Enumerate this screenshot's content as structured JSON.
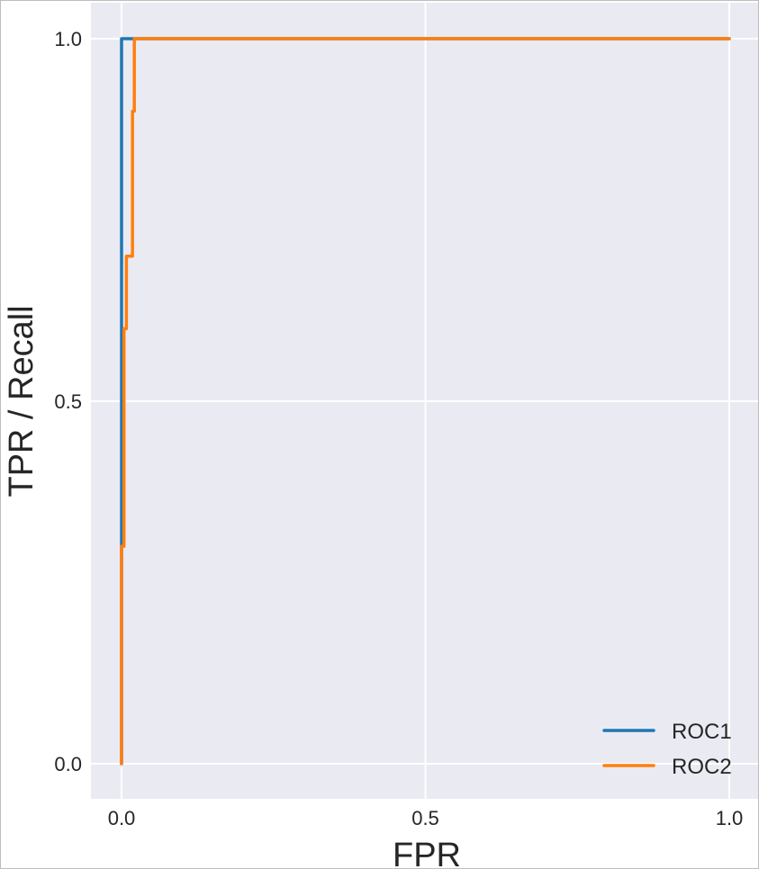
{
  "chart_data": {
    "type": "line",
    "title": "",
    "xlabel": "FPR",
    "ylabel": "TPR / Recall",
    "xlim": [
      -0.05,
      1.03
    ],
    "ylim": [
      -0.05,
      1.05
    ],
    "xticks": [
      0.0,
      0.5,
      1.0
    ],
    "xtick_labels": [
      "0.0",
      "0.5",
      "1.0"
    ],
    "yticks": [
      0.0,
      0.5,
      1.0
    ],
    "ytick_labels": [
      "0.0",
      "0.5",
      "1.0"
    ],
    "grid": true,
    "background": "#eaeaf2",
    "legend_position": "lower-right",
    "series": [
      {
        "name": "ROC1",
        "color": "#1f77b4",
        "x": [
          0.0,
          0.0,
          0.0,
          0.0,
          0.0,
          0.0,
          0.003,
          0.003,
          0.015,
          1.0
        ],
        "y": [
          0.0,
          0.1,
          0.3,
          0.8,
          0.9,
          1.0,
          1.0,
          1.0,
          1.0,
          1.0
        ]
      },
      {
        "name": "ROC2",
        "color": "#ff7f0e",
        "x": [
          0.0,
          0.0,
          0.004,
          0.004,
          0.008,
          0.008,
          0.018,
          0.018,
          0.021,
          0.021,
          1.0
        ],
        "y": [
          0.0,
          0.3,
          0.3,
          0.6,
          0.6,
          0.7,
          0.7,
          0.9,
          0.9,
          1.0,
          1.0
        ]
      }
    ]
  }
}
